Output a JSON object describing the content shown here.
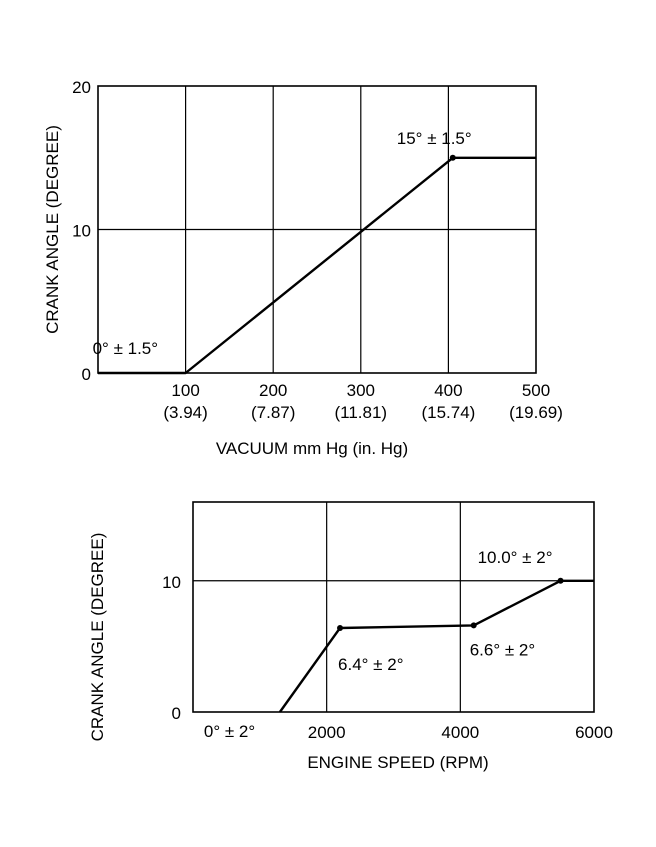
{
  "chart_data": [
    {
      "type": "line",
      "ylabel": "CRANK ANGLE (DEGREE)",
      "xlabel": "VACUUM mm Hg (in. Hg)",
      "xlim": [
        0,
        500
      ],
      "ylim": [
        0,
        20
      ],
      "grid": true,
      "x_ticks": [
        {
          "value": 100,
          "label": "100",
          "sublabel": "(3.94)"
        },
        {
          "value": 200,
          "label": "200",
          "sublabel": "(7.87)"
        },
        {
          "value": 300,
          "label": "300",
          "sublabel": "(11.81)"
        },
        {
          "value": 400,
          "label": "400",
          "sublabel": "(15.74)"
        },
        {
          "value": 500,
          "label": "500",
          "sublabel": "(19.69)"
        }
      ],
      "y_ticks": [
        {
          "value": 0,
          "label": "0"
        },
        {
          "value": 10,
          "label": "10"
        },
        {
          "value": 20,
          "label": "20"
        }
      ],
      "series": [
        {
          "x": [
            0,
            100,
            405,
            500
          ],
          "y": [
            0,
            0,
            15,
            15
          ]
        }
      ],
      "markers": [
        {
          "x": 405,
          "y": 15
        }
      ],
      "annotations": [
        {
          "x": 100,
          "y": 0,
          "text": "0° ± 1.5°"
        },
        {
          "x": 405,
          "y": 15,
          "text": "15° ± 1.5°"
        }
      ]
    },
    {
      "type": "line",
      "ylabel": "CRANK ANGLE (DEGREE)",
      "xlabel": "ENGINE SPEED (RPM)",
      "xlim": [
        0,
        6000
      ],
      "ylim": [
        0,
        16
      ],
      "grid": true,
      "x_ticks": [
        {
          "value": 2000,
          "label": "2000"
        },
        {
          "value": 4000,
          "label": "4000"
        },
        {
          "value": 6000,
          "label": "6000"
        }
      ],
      "y_ticks": [
        {
          "value": 0,
          "label": "0"
        },
        {
          "value": 10,
          "label": "10"
        }
      ],
      "series": [
        {
          "x": [
            1300,
            2200,
            4200,
            5500,
            6000
          ],
          "y": [
            0,
            6.4,
            6.6,
            10,
            10
          ]
        }
      ],
      "markers": [
        {
          "x": 2200,
          "y": 6.4
        },
        {
          "x": 4200,
          "y": 6.6
        },
        {
          "x": 5500,
          "y": 10
        }
      ],
      "annotations": [
        {
          "x": 1300,
          "y": 0,
          "text": "0° ± 2°"
        },
        {
          "x": 2200,
          "y": 6.4,
          "text": "6.4° ± 2°"
        },
        {
          "x": 4200,
          "y": 6.6,
          "text": "6.6° ± 2°"
        },
        {
          "x": 5500,
          "y": 10,
          "text": "10.0° ± 2°"
        }
      ]
    }
  ]
}
